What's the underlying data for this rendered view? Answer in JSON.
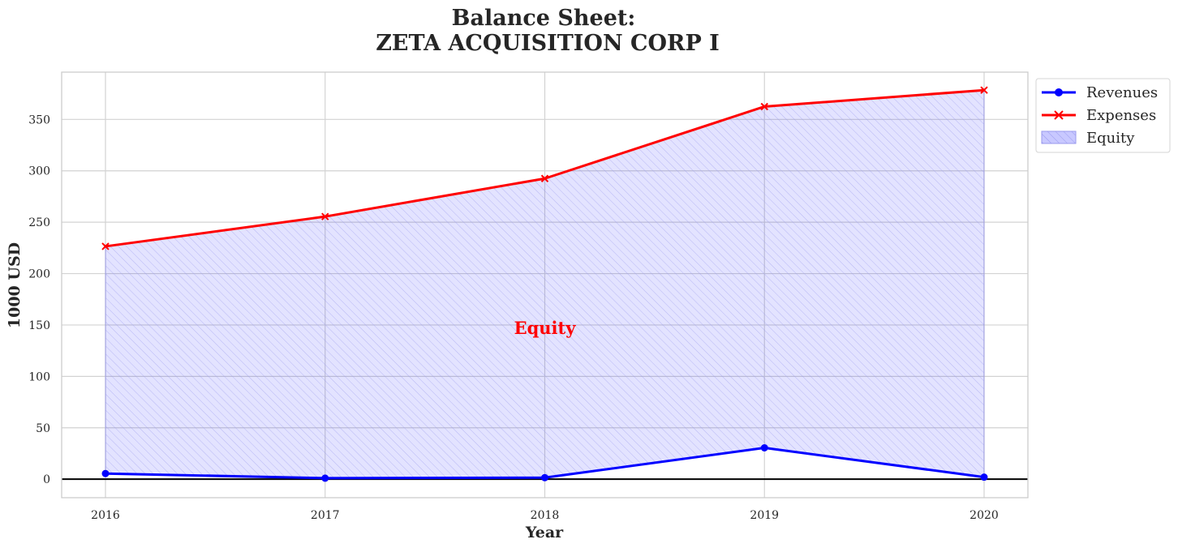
{
  "chart_data": {
    "type": "line",
    "title_line1": "Balance Sheet:",
    "title_line2": "ZETA ACQUISITION CORP I",
    "xlabel": "Year",
    "ylabel": "1000 USD",
    "categories": [
      "2016",
      "2017",
      "2018",
      "2019",
      "2020"
    ],
    "yticks": [
      0,
      50,
      100,
      150,
      200,
      250,
      300,
      350
    ],
    "ylim": [
      -18,
      396
    ],
    "series": [
      {
        "name": "Revenues",
        "values": [
          5.5,
          1.0,
          1.5,
          30.5,
          2.0
        ],
        "color": "#0000ff",
        "marker": "circle"
      },
      {
        "name": "Expenses",
        "values": [
          226.5,
          255.5,
          292.5,
          362.5,
          378.5
        ],
        "color": "#ff0000",
        "marker": "x"
      }
    ],
    "fill": {
      "name": "Equity",
      "between": [
        "Revenues",
        "Expenses"
      ],
      "color": "#0000ff"
    },
    "annotation": {
      "text": "Equity",
      "x": "2018",
      "y": 147,
      "color": "#ff0000"
    },
    "grid": true,
    "legend": {
      "position": "outside-top-right",
      "labels": [
        "Revenues",
        "Expenses",
        "Equity"
      ]
    }
  }
}
